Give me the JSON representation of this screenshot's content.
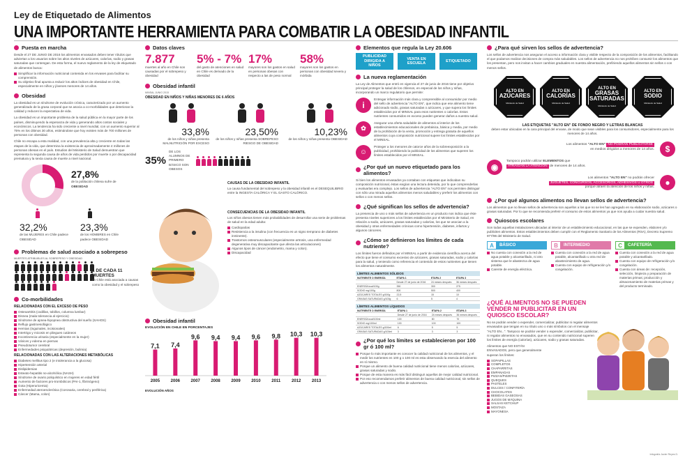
{
  "header": {
    "kicker": "Ley de Etiquetado de Alimentos",
    "title": "UNA IMPORTANTE HERRAMIENTA PARA COMBATIR LA OBESIDAD INFANTIL"
  },
  "col1": {
    "puesta": {
      "title": "Puesta en marcha",
      "text": "Desde el 27 DE JUNIO DE 2016 los alimentos envasados deben tener rótulos que adviertan a los usuarios sobre los altos niveles de azúcares, calorías, sodio y grasas saturadas que contengan. De esta forma, el nuevo reglamento de la ley de etiquetado de alimentos busca:",
      "bullets": [
        "Simplificar la información nutricional contenida en los envases para facilitar su comprensión.",
        "Su objetivo final apunta a reducir los altos índices de obesidad en Chile, especialmente en niños y jóvenes menores de 14 años."
      ]
    },
    "obesidad": {
      "title": "Obesidad",
      "p1": "La obesidad es un síndrome de evolución crónica, caracterizado por un aumento generalizado de la grasa corporal que se asocia a co-morbilidades que deterioran la calidad y reducen la expectativa de vida.",
      "p2": "La obesidad es un importante problema de la salud pública en la mayor parte de los países, disminuyendo la esperanza de vida y generando altos costos sociales y económicos. La tendencia ha sido creciente a nivel mundial, con un aumento superior al 75% en los últimos 30 años, estimándose que hoy existen más de 700 millones de personas con obesidad.",
      "p3": "Chile no escapa a esta realidad, con una prevalencia alta y creciente en todas las etapas de la vida, que determina la existencia de aproximadamente 4 millones de personas obesas en el país. Estudios del Ministerio de Salud demuestran que representa la segunda causa de años de vida perdidos por muerte o por discapacidad prematura y la sexta causa de muerte a nivel nacional."
    },
    "stats": {
      "total_pct": "27,8%",
      "total_label": "de la población chilena sufre de",
      "total_bold": "OBESIDAD",
      "women_pct": "32,2%",
      "women_label": "de las MUJERES en Chile padece OBESIDAD",
      "men_pct": "23,3%",
      "men_label": "de los HOMBRES en Chile padece OBESIDAD"
    },
    "problemas": {
      "title": "Problemas de salud asociado a sobrepeso",
      "caption": "MUERTES ATRIBUIBLES AL SOBREPESO Y OBESIDAD",
      "ratio": "1 DE CADA 11 MUERTES",
      "ratio_text": "en Chile está asociada a causas como la obesidad y el sobrepeso"
    },
    "comorb": {
      "title": "Co-morbilidades",
      "h1": "RELACIONADAS CON EL EXCESO DE PESO",
      "list1": [
        "Osteoartritis (codillas, tobillos, columna lumbar)",
        "Disnea (mala tolerancia al ejercicio)",
        "Síndrome de apnea-hipopnea obstructiva del sueño (SAHOS)",
        "Reflujo gastroesofágico",
        "Hernias (inguinales, incisionales)",
        "Intertrigo y micosis en pliegues cutáneos",
        "Incontinencia urinaria (especialmente en la mujer)",
        "Várices y edema en piernas",
        "Pseudotumor cerebral",
        "Enfermedades psiquiátricas (depresión, bulimia)"
      ],
      "h2": "RELACIONADAS CON LAS ALTERACIONES METABÓLICAS",
      "list2": [
        "Diabetes mellitus tipo 2 (e intolerancia a la glucosa)",
        "Hipertensión arterial",
        "Dislipidemias",
        "Esteato-hepatitis no-alcohólica (NASH)",
        "Síndrome de ovario poliquístico en mujeres en edad fértil",
        "Aumento de factores pro-trombóticos (PAI-1, fibrinógeno)",
        "Gota (Hiperuricemia)",
        "Enfermedad ateroesclerótica (Coronaria, cerebral y periférica)",
        "Cáncer (Mama, colon)"
      ]
    }
  },
  "col2": {
    "datos": {
      "title": "Datos claves",
      "items": [
        {
          "num": "7.877",
          "text": "muertes al año en Chile son causadas por el sobrepeso y obesidad"
        },
        {
          "num": "5% - 7%",
          "text": "del gasto de atenciones en salud en Chile es derivado de la obesidad"
        },
        {
          "num": "17%",
          "text": "mayores son los gastos en salud en personas obesas con respecto a las de peso normal"
        },
        {
          "num": "58%",
          "text": "mayores son los gastos en personas con obesidad severa y mórbida"
        }
      ]
    },
    "infantil": {
      "title": "Obesidad infantil",
      "source": "MINSAL JUNIO 2015",
      "sub": "OBESIDAD EN NIÑOS Y NIÑAS MENORES DE 6 AÑOS",
      "items": [
        {
          "pct": "33,8%",
          "text": "de los niños y niñas presenta MALNUTRICIÓN POR EXCESO"
        },
        {
          "pct": "23,50%",
          "text": "de los niños y niñas presenta SOBREPESO RIESGO DE OBESIDAD"
        },
        {
          "pct": "10,23%",
          "text": "de los niños y niñas presenta OBESIDAD"
        }
      ],
      "school_pct": "35%",
      "school_text": "DE LOS ALUMNOS DE PRIMERO BÁSICO SON OBESOS"
    },
    "causas": {
      "title": "CAUSAS DE LA OBESIDAD INFANTIL",
      "text": "La causa fundamental del sobrepeso y la obesidad infantil es el DESEQUILIBRIO entre la INGESTA CALÓRICA Y EL GASTO CALÓRICO."
    },
    "consecuencias": {
      "title": "CONSECUENCIAS DE LA OBESIDAD INFANTIL",
      "text": "Los niños obesos tienen más probabilidades de desarrollar una serie de problemas de salud en la edad adulta:",
      "items": [
        "Cardiopatías",
        "Resistencia a la insulina (con frecuencia es un signo temprano de diabetes inminente).",
        "Trastornos osteomusculares (especialmente artrosis, una enfermedad degenerativa muy discapacitante que afecta las articulaciones)",
        "Algunos tipos de cáncer (endometrio, mama y colon).",
        "Discapacidad"
      ]
    },
    "chart_title": "Obesidad infantil",
    "chart_sub": "EVOLUCIÓN EN CHILE EN PORCENTAJES",
    "chart_foot": "EVOLUCIÓN AÑOS",
    "chart_data": {
      "type": "bar",
      "categories": [
        "2005",
        "2006",
        "2007",
        "2008",
        "2009",
        "2010",
        "2011",
        "2012",
        "2013"
      ],
      "values": [
        7.1,
        7.4,
        9.6,
        9.4,
        9.4,
        9.6,
        9.8,
        10.3,
        10.3
      ],
      "labels": [
        "7,1",
        "7,4",
        "9,6",
        "9,4",
        "9,4",
        "9,6",
        "9,8",
        "10,3",
        "10,3"
      ],
      "title": "",
      "xlabel": "",
      "ylabel": "",
      "ylim": [
        0,
        11
      ]
    }
  },
  "col3": {
    "elementos": {
      "title": "Elementos que regula la Ley 20.606",
      "badges": [
        "PUBLICIDAD DIRIGIDA A NIÑOS",
        "VENTA EN ESCUELA",
        "ETIQUETADO"
      ]
    },
    "nueva": {
      "title": "La nueva reglamentación",
      "intro": "La Ley de Alimentos que entró en vigencia el 27 de junio de 2016 tiene por objetivo principal proteger la salud de los chilenos, en especial de los niños y niñas, incorporando un marco regulatorio que permite:",
      "items": [
        "Entregar información más clara y comprensible al consumidor por medio del sello de advertencia \"ALTO EN\", que indica que ese alimento tiene adicionado sodio, grasas saturadas o azúcares, y que supera los límites establecidos por el MINSAL para esos nutrientes o calorías. Estos nutrientes consumidos en exceso pueden generar daños a nuestra salud.",
        "Asegurar una oferta saludable de alimentos al interior de los establecimientos educacionales de prebásica, básica y media, por medio de la prohibición de la venta, promoción y entrega gratuita de aquellos alimentos cuya composición nutricional supere los límites establecidos por el MINSAL.",
        "Proteger a los menores de catorce años de la sobreexposición a la publicidad, prohibiendo la publicidad de los alimentos que superen los límites establecidos por el MINSAL."
      ]
    },
    "porque": {
      "title": "¿Por qué un nuevo etiquetado para los alimentos?",
      "text": "Si bien los alimentos envasados ya contaban con etiquetas que indicaban su composición nutricional, éstas exigían una lectura detenida, por lo que comprenderlas y evaluarlas era complejo. Los sellos de advertencia \"ALTO EN\" nos permiten distinguir con sólo una mirada aquellos alimentos menos saludables y preferir los alimentos con sellos o con menos sellos."
    },
    "significan": {
      "title": "¿Qué significan los sellos de advertencia?",
      "text": "La presencia de uno o más sellos de advertencia en un producto nos indica que éste presenta niveles superiores a los límites establecidos por el Ministerio de Salud, en relación a sodio, azúcares, grasas saturadas y calorías, los que se asocian a la obesidad y otras enfermedades crónicas como hipertensión, diabetes, infartos y algunos cánceres."
    },
    "definieron": {
      "title": "¿Cómo se definieron los límites de cada nutriente?",
      "text": "Los límites fueron definidos por el MINSAL a partir de evidencia científica acerca del efecto que tiene el consumo excesivo de azúcares, grasas saturadas, sodio y calorías para la salud, y teniendo como referencia el contenido de estos nutrientes que tienen los alimentos naturalmente."
    },
    "tabla_solidos": {
      "title": "LÍMITES ALIMENTOS SÓLIDOS",
      "headers": [
        "NUTRIENTE O ENERGÍA",
        "ETAPA 1",
        "ETAPA 2",
        "ETAPA 3"
      ],
      "subheaders": [
        "",
        "Desde 27 de junio de 2016",
        "24 meses después",
        "36 meses después"
      ],
      "rows": [
        [
          "ENERGÍA kcal/100g",
          "350",
          "300",
          "275"
        ],
        [
          "SODIO mg/100g",
          "800",
          "500",
          "400"
        ],
        [
          "AZÚCARES TOTALES g/100g",
          "22,5",
          "15",
          "10"
        ],
        [
          "GRASAS SATURADAS g/100g",
          "6",
          "5",
          "4"
        ]
      ]
    },
    "tabla_liquidos": {
      "title": "LÍMITES ALIMENTOS LÍQUIDOS",
      "headers": [
        "NUTRIENTE O ENERGÍA",
        "ETAPA 1",
        "ETAPA 2",
        "ETAPA 3"
      ],
      "subheaders": [
        "",
        "Desde 27 de junio de 2016",
        "24 meses después",
        "36 meses después"
      ],
      "rows": [
        [
          "ENERGÍA kcal/100ml",
          "100",
          "80",
          "70"
        ],
        [
          "SODIO mg/100ml",
          "100",
          "100",
          "100"
        ],
        [
          "AZÚCARES TOTALES g/100ml",
          "6",
          "5",
          "5"
        ],
        [
          "GRASAS SATURADAS g/100ml",
          "3",
          "3",
          "3"
        ]
      ]
    },
    "limites100": {
      "title": "¿Por qué los límites se establecieron por 100 gr ó 100 ml?",
      "items": [
        "Porque lo más importante es conocer la calidad nutricional de los alimentos, y el medir los nutrientes en 100 g o 100 ml es esta observando la esencia del alimento en sí mismo.",
        "Porque un alimento de buena calidad nutricional tiene menos calorías, azúcares, grasas saturadas y sodio.",
        "Porque de esta manera es más fácil distinguir aquellos de mejor calidad nutricional.",
        "Por eso recomendamos preferir alimentos de buena calidad nutricional, sin sellos de advertencia o con menos sellos de advertencia."
      ]
    }
  },
  "col4": {
    "paraque": {
      "title": "¿Para qué sirven los sellos de advertencia?",
      "text": "Los sellos de advertencia nos aseguran el acceso a información clara y visible respecto de la composición de los alimentos, facilitando el que podamos realizar decisiones de compra más saludables. Los sellos de advertencia no nos prohíben consumir los alimentos que los presentan, pero nos invitan a hacer cambios graduales en nuestra alimentación, prefiriendo aquellos alimentos sin sellos o con menos sellos."
    },
    "sellos": [
      {
        "top": "ALTO EN",
        "main": "AZÚCARES",
        "foot": "Ministerio de Salud"
      },
      {
        "top": "ALTO EN",
        "main": "CALORÍAS",
        "foot": "Ministerio de Salud"
      },
      {
        "top": "ALTO EN",
        "main": "GRASAS SATURADAS",
        "foot": "Ministerio de Salud"
      },
      {
        "top": "ALTO EN",
        "main": "SODIO",
        "foot": "Ministerio de Salud"
      }
    ],
    "etiquetas": {
      "title": "LAS ETIQUETAS \"ALTO EN\" DE FONDO NEGRO Y LETRAS BLANCAS",
      "text": "deben estar ubicadas en la cara principal del envase, de modo que sean visibles para los consumidores, especialmente para los menores de 14 años."
    },
    "publicidad": {
      "t1a": "Los alimentos",
      "t1b": "\"ALTO EN\"",
      "t1tag": "NO PODRÁN PUBLICITARSE",
      "t1c": "en medios dirigidos a menores de 14 años.",
      "t2a": "Tampoco podrán utilizar",
      "t2b": "ELEMENTOS",
      "t2c": "que",
      "t2tag": "ATRAIGAN LA ATENCIÓN",
      "t2d": "de menores de 14 años.",
      "t3a": "Los alimentos",
      "t3b": "\"ALTO EN\"",
      "t3c": "no podrán ofrecer",
      "t3tag": "JUGUETES, CONCURSOS, ACCESORIOS, ADHESIVOS U OTROS",
      "t3d": "porque atraen la atención de los niños y niñas."
    },
    "algunos": {
      "title": "¿Por qué algunos alimentos no llevan sellos de advertencia?",
      "text": "Los alimentos que no llevan sellos de advertencia son aquellos a los que no se les han agregado en su elaboración sodio, azúcares o grasas saturadas. Por lo que se recomienda preferir el consumo de estos alimentos ya que nos ayuda a cuidar nuestra salud."
    },
    "quioscos": {
      "title": "Quioscos escolares",
      "text": "Son todas aquellas instalaciones ubicadas al interior de un establecimiento educacional, en las que se expenden, elaboren y/o publiciten alimentos. Estos establecimientos deben cumplir con el Reglamento Sanitario de los Alimentos (RSA), Decreto Supremo 977/96 del Ministerio de Salud.",
      "types": [
        {
          "letter": "A",
          "name": "BÁSICO",
          "items": [
            "No cuenta con conexión a la red de agua potable y alcantarillado, ni otro sistema que le abastezca de agua potable.",
            "Carente de energía eléctrica."
          ]
        },
        {
          "letter": "B",
          "name": "INTERMEDIO",
          "items": [
            "Cuenta con conexión a la red de agua potable, alcantarillado u otra red de abastecimiento de agua.",
            "Cuenta con equipo de refrigeración y/o congelación."
          ]
        },
        {
          "letter": "C",
          "name": "CAFETERÍA",
          "items": [
            "Cuenta con conexión a la red de agua potable y alcantarillado.",
            "Cuenta con equipo de refrigeración y/o congelación.",
            "Cuenta con áreas de: recepción, selección, limpieza y preparación de materias primas; producción y almacenamiento de materias primas y del producto terminado."
          ]
        }
      ]
    },
    "quiosco_q": {
      "title": "¿QUÉ ALIMENTOS NO SE PUEDEN VENDER NI PUBLICITAR EN UN QUIOSCO ESCOLAR?",
      "text": "No se podrán vender o expender, comercializar, publicitar ni regalar alimentos envasados que tengan en su rótulo uno o más símbolos con el mensaje \"ALTO EN...\". Tampoco se podrán vender o expender, comercializar, publicitar, ni regalar alimentos no envasados, que en su contenido nutricional superen los límites de energía (calorías), azúcares, sodio y grasas saturadas.",
      "list_intro": "Alimentos que NO ESTÁN ENVASADOS, pero que generalmente superan los límites:",
      "list": [
        "SOPAIPILLAS",
        "COMPLETOS",
        "CHAPARRITAS",
        "EMPANADAS",
        "PIZZAS/PIZZETAS",
        "QUEQUES",
        "PASTELES",
        "DULCES / CONFITERÍA",
        "CHOCOLATES",
        "BEBIDAS GASEOSAS",
        "JUGOS DE MÁQUINA",
        "SALSAS KETCHUP",
        "MOSTAZA",
        "MAYONESA"
      ]
    },
    "credit": "Infografía Javier Reyes D."
  },
  "colors": {
    "accent": "#d81b72",
    "blue": "#1ea0c9",
    "dark": "#111111"
  }
}
